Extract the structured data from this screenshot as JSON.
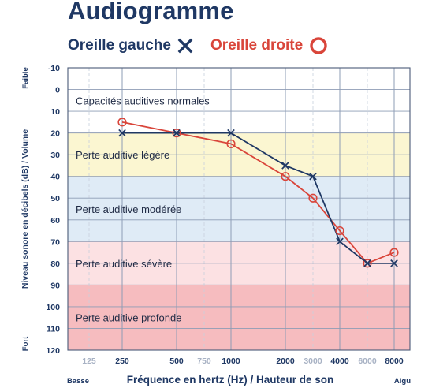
{
  "header": {
    "title": "Audiogramme",
    "legend_left_label": "Oreille gauche",
    "legend_right_label": "Oreille droite"
  },
  "chart_data": {
    "type": "line",
    "title": "Audiogramme",
    "xlabel": "Fréquence en hertz (Hz) / Hauteur de son",
    "ylabel": "Niveau sonore en décibels (dB) / Volume",
    "x_categories": [
      "125",
      "250",
      "500",
      "750",
      "1000",
      "2000",
      "3000",
      "4000",
      "6000",
      "8000"
    ],
    "x_categories_faint": [
      "125",
      "750",
      "3000",
      "6000"
    ],
    "y_ticks": [
      -10,
      0,
      10,
      20,
      30,
      40,
      50,
      60,
      70,
      80,
      90,
      100,
      110,
      120
    ],
    "ylim": [
      -10,
      120
    ],
    "y_inverted": true,
    "grid": true,
    "x_left_label": "Basse",
    "x_right_label": "Aigu",
    "y_top_label": "Faible",
    "y_bottom_label": "Fort",
    "bands": [
      {
        "label": "Capacités auditives normales",
        "from": -10,
        "to": 20,
        "color": "#ffffff"
      },
      {
        "label": "Perte auditive légère",
        "from": 20,
        "to": 40,
        "color": "#fbf6d1"
      },
      {
        "label": "Perte auditive modérée",
        "from": 40,
        "to": 70,
        "color": "#dfebf6"
      },
      {
        "label": "Perte auditive sévère",
        "from": 70,
        "to": 90,
        "color": "#fce1e3"
      },
      {
        "label": "Perte auditive profonde",
        "from": 90,
        "to": 120,
        "color": "#f6bcbf"
      }
    ],
    "series": [
      {
        "name": "Oreille gauche",
        "marker": "cross",
        "color": "#1f3864",
        "x": [
          "250",
          "500",
          "1000",
          "2000",
          "3000",
          "4000",
          "6000",
          "8000"
        ],
        "y": [
          20,
          20,
          20,
          35,
          40,
          70,
          80,
          80
        ]
      },
      {
        "name": "Oreille droite",
        "marker": "circle",
        "color": "#d9453a",
        "x": [
          "250",
          "500",
          "1000",
          "2000",
          "3000",
          "4000",
          "6000",
          "8000"
        ],
        "y": [
          15,
          20,
          25,
          40,
          50,
          65,
          80,
          75
        ]
      }
    ]
  }
}
